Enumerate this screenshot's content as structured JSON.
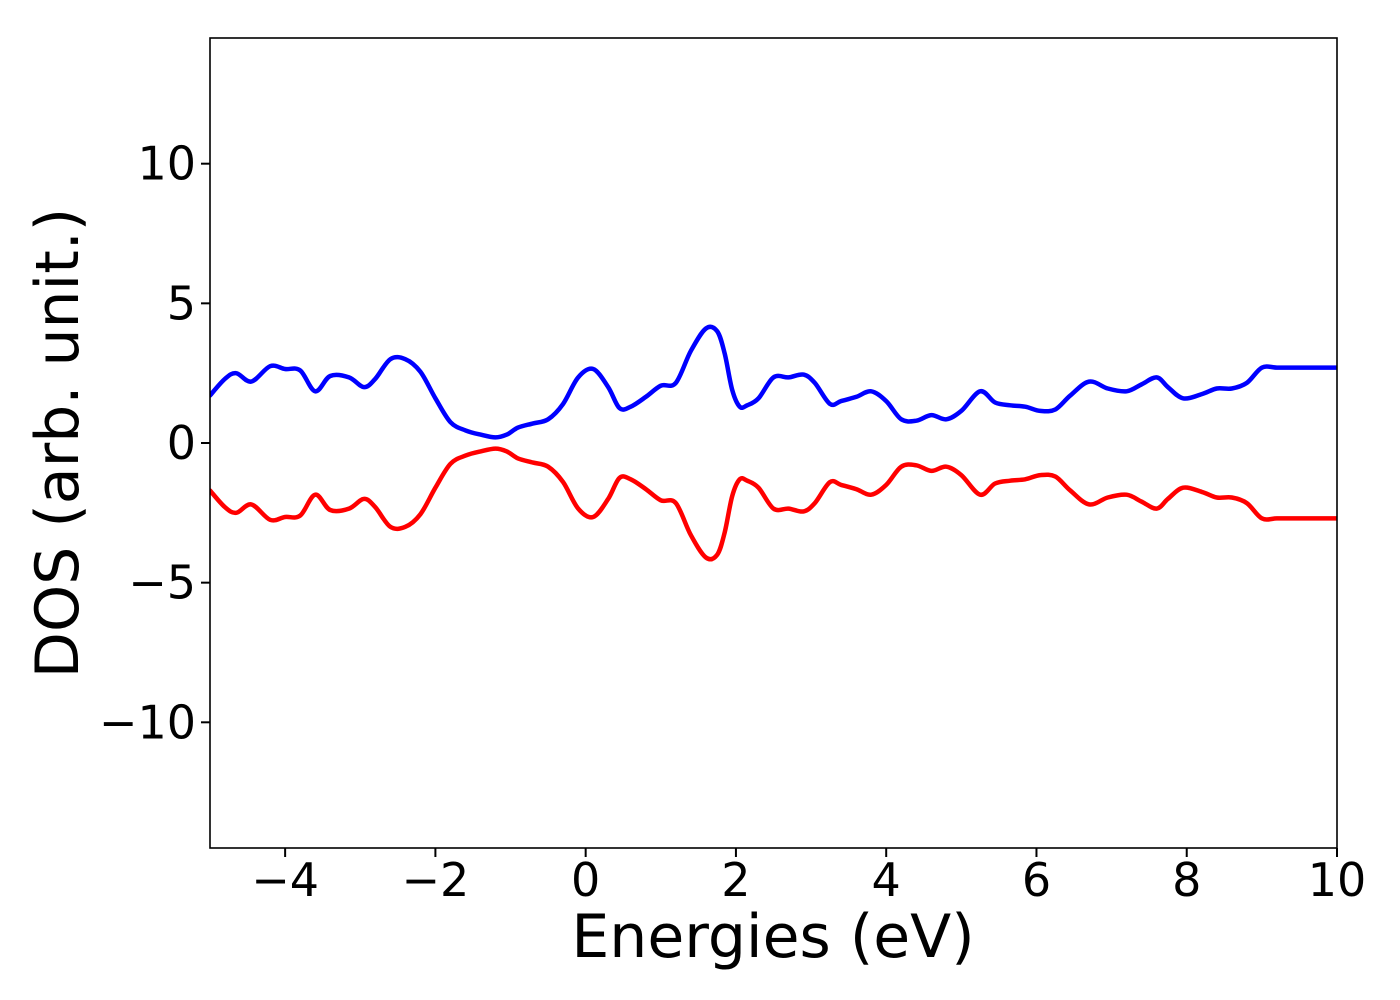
{
  "chart_data": {
    "type": "line",
    "title": "",
    "xlabel": "Energies (eV)",
    "ylabel": "DOS (arb. unit.)",
    "xlim": [
      -5,
      10
    ],
    "ylim": [
      -14.5,
      14.5
    ],
    "xticks": [
      -4,
      -2,
      0,
      2,
      4,
      6,
      8,
      10
    ],
    "yticks": [
      -10,
      -5,
      0,
      5,
      10
    ],
    "xtick_labels": [
      "−4",
      "−2",
      "0",
      "2",
      "4",
      "6",
      "8",
      "10"
    ],
    "ytick_labels": [
      "−10",
      "−5",
      "0",
      "5",
      "10"
    ],
    "grid": false,
    "legend": "none",
    "series": [
      {
        "color": "#0000ff",
        "x": [
          -5.0,
          -4.8,
          -4.65,
          -4.45,
          -4.2,
          -4.0,
          -3.8,
          -3.6,
          -3.4,
          -3.15,
          -2.95,
          -2.8,
          -2.6,
          -2.4,
          -2.2,
          -2.0,
          -1.8,
          -1.6,
          -1.4,
          -1.2,
          -1.05,
          -0.9,
          -0.7,
          -0.5,
          -0.3,
          -0.1,
          0.1,
          0.3,
          0.45,
          0.6,
          0.8,
          1.0,
          1.2,
          1.4,
          1.6,
          1.75,
          1.85,
          1.95,
          2.05,
          2.15,
          2.3,
          2.5,
          2.7,
          2.9,
          3.05,
          3.25,
          3.4,
          3.6,
          3.8,
          4.0,
          4.2,
          4.4,
          4.6,
          4.8,
          5.0,
          5.25,
          5.45,
          5.65,
          5.85,
          6.05,
          6.25,
          6.45,
          6.7,
          6.95,
          7.2,
          7.4,
          7.6,
          7.75,
          7.95,
          8.2,
          8.4,
          8.6,
          8.8,
          9.0,
          9.2,
          9.45,
          9.7,
          9.85,
          10.0
        ],
        "y": [
          1.7,
          2.3,
          2.5,
          2.2,
          2.75,
          2.65,
          2.6,
          1.85,
          2.4,
          2.35,
          2.0,
          2.3,
          3.0,
          3.0,
          2.55,
          1.6,
          0.75,
          0.45,
          0.3,
          0.2,
          0.3,
          0.55,
          0.7,
          0.85,
          1.4,
          2.35,
          2.65,
          2.0,
          1.25,
          1.3,
          1.65,
          2.05,
          2.15,
          3.3,
          4.1,
          4.0,
          3.2,
          1.9,
          1.3,
          1.35,
          1.6,
          2.35,
          2.35,
          2.45,
          2.15,
          1.4,
          1.5,
          1.65,
          1.85,
          1.5,
          0.85,
          0.8,
          1.0,
          0.85,
          1.15,
          1.85,
          1.45,
          1.35,
          1.3,
          1.15,
          1.2,
          1.7,
          2.2,
          1.95,
          1.85,
          2.1,
          2.35,
          2.0,
          1.6,
          1.75,
          1.95,
          1.95,
          2.15,
          2.7,
          2.7,
          2.7,
          2.7,
          2.7,
          2.7
        ]
      },
      {
        "color": "#ff0000",
        "x": [
          -5.0,
          -4.8,
          -4.65,
          -4.45,
          -4.2,
          -4.0,
          -3.8,
          -3.6,
          -3.4,
          -3.15,
          -2.95,
          -2.8,
          -2.6,
          -2.4,
          -2.2,
          -2.0,
          -1.8,
          -1.6,
          -1.4,
          -1.2,
          -1.05,
          -0.9,
          -0.7,
          -0.5,
          -0.3,
          -0.1,
          0.1,
          0.3,
          0.45,
          0.6,
          0.8,
          1.0,
          1.2,
          1.4,
          1.6,
          1.75,
          1.85,
          1.95,
          2.05,
          2.15,
          2.3,
          2.5,
          2.7,
          2.9,
          3.05,
          3.25,
          3.4,
          3.6,
          3.8,
          4.0,
          4.2,
          4.4,
          4.6,
          4.8,
          5.0,
          5.25,
          5.45,
          5.65,
          5.85,
          6.05,
          6.25,
          6.45,
          6.7,
          6.95,
          7.2,
          7.4,
          7.6,
          7.75,
          7.95,
          8.2,
          8.4,
          8.6,
          8.8,
          9.0,
          9.2,
          9.45,
          9.7,
          9.85,
          10.0
        ],
        "y": [
          -1.7,
          -2.3,
          -2.5,
          -2.2,
          -2.75,
          -2.65,
          -2.6,
          -1.85,
          -2.4,
          -2.35,
          -2.0,
          -2.3,
          -3.0,
          -3.0,
          -2.55,
          -1.6,
          -0.75,
          -0.45,
          -0.3,
          -0.2,
          -0.3,
          -0.55,
          -0.7,
          -0.85,
          -1.4,
          -2.35,
          -2.65,
          -2.0,
          -1.25,
          -1.3,
          -1.65,
          -2.05,
          -2.15,
          -3.3,
          -4.1,
          -4.0,
          -3.2,
          -1.9,
          -1.3,
          -1.35,
          -1.6,
          -2.35,
          -2.35,
          -2.45,
          -2.15,
          -1.4,
          -1.5,
          -1.65,
          -1.85,
          -1.5,
          -0.85,
          -0.8,
          -1.0,
          -0.85,
          -1.15,
          -1.85,
          -1.45,
          -1.35,
          -1.3,
          -1.15,
          -1.2,
          -1.7,
          -2.2,
          -1.95,
          -1.85,
          -2.1,
          -2.35,
          -2.0,
          -1.6,
          -1.75,
          -1.95,
          -1.95,
          -2.15,
          -2.7,
          -2.7,
          -2.7,
          -2.7,
          -2.7,
          -2.7
        ]
      }
    ]
  }
}
